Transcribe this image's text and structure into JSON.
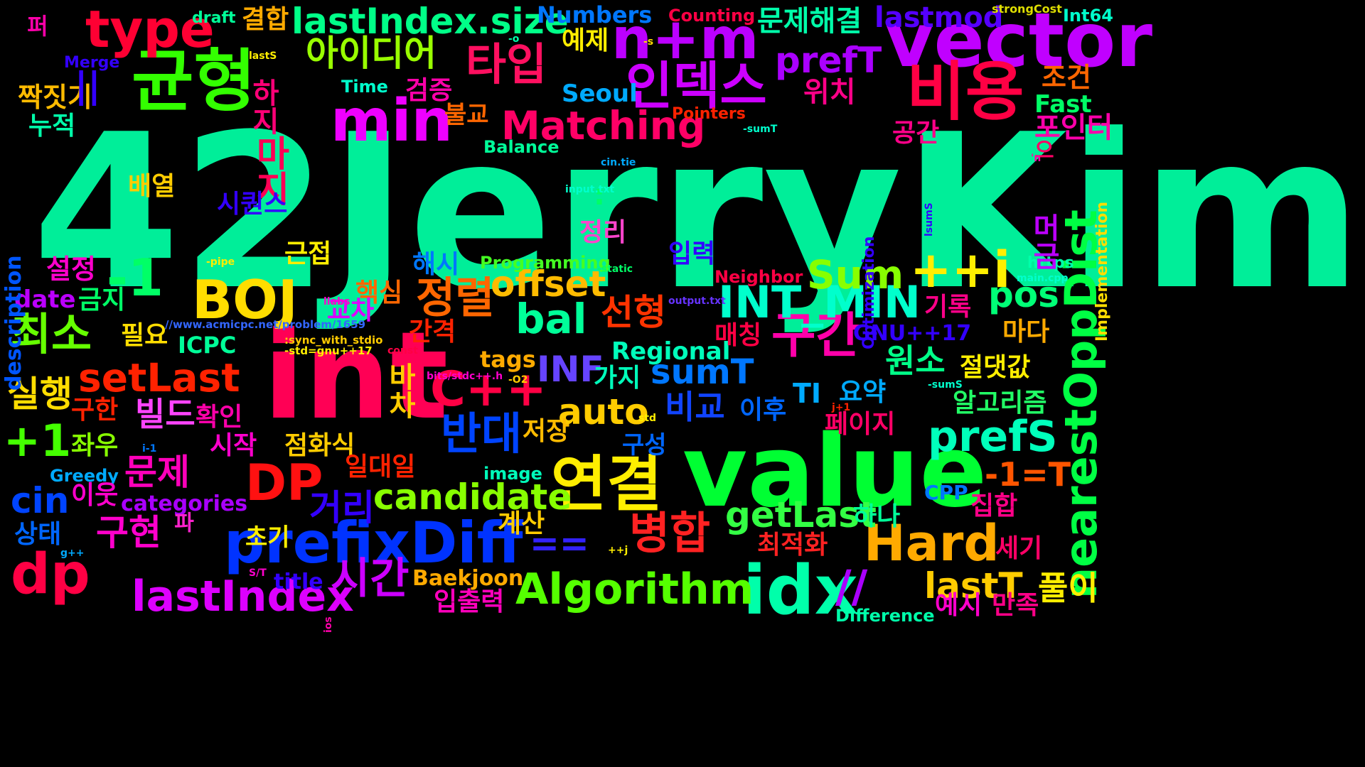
{
  "words": {
    "w0": {
      "text": "42JerryKim",
      "color": "#00ee99"
    },
    "w1": {
      "text": "int",
      "color": "#ff0055"
    },
    "w2": {
      "text": "value",
      "color": "#00ff33"
    },
    "w3": {
      "text": "vector",
      "color": "#c000ff"
    },
    "w4": {
      "text": "균형",
      "color": "#33ff00"
    },
    "w5": {
      "text": "n+m",
      "color": "#bb00ff"
    },
    "w6": {
      "text": "비용",
      "color": "#ff0044"
    },
    "w7": {
      "text": "min",
      "color": "#ee00ff"
    },
    "w8": {
      "text": "타입",
      "color": "#ff1060"
    },
    "w9": {
      "text": "인덱스",
      "color": "#cc00ff"
    },
    "w10": {
      "text": "type",
      "color": "#ff0033"
    },
    "w11": {
      "text": "lastIndex.size",
      "color": "#00ff88"
    },
    "w12": {
      "text": "아이디어",
      "color": "#99ff00"
    },
    "w13": {
      "text": "prefixDiff",
      "color": "#0033ff"
    },
    "w14": {
      "text": "연결",
      "color": "#ffee00"
    },
    "w15": {
      "text": "idx",
      "color": "#00ffaa"
    },
    "w16": {
      "text": "dp",
      "color": "#ff0044"
    },
    "w17": {
      "text": "DP",
      "color": "#ff1111"
    },
    "w18": {
      "text": "BOJ",
      "color": "#ffdd00"
    },
    "w19": {
      "text": "-1",
      "color": "#00ff66"
    },
    "w20": {
      "text": "최소",
      "color": "#66ff00"
    },
    "w21": {
      "text": "구간",
      "color": "#ff00aa"
    },
    "w22": {
      "text": "INT_MIN",
      "color": "#00ffcc"
    },
    "w23": {
      "text": "++i",
      "color": "#ffee00"
    },
    "w24": {
      "text": "Hard",
      "color": "#ffaa00"
    },
    "w25": {
      "text": "병합",
      "color": "#ff2222"
    },
    "w26": {
      "text": "Algorithm",
      "color": "#55ff00"
    },
    "w27": {
      "text": "lastIndex",
      "color": "#dd00ff"
    },
    "w28": {
      "text": "시간",
      "color": "#cc00ff"
    },
    "w29": {
      "text": "==",
      "color": "#3322ff"
    },
    "w30": {
      "text": "C++",
      "color": "#ff0044"
    },
    "w31": {
      "text": "반대",
      "color": "#0044ff"
    },
    "w32": {
      "text": "Matching",
      "color": "#ff0066"
    },
    "w33": {
      "text": "정렬",
      "color": "#ff6600"
    },
    "w34": {
      "text": "offset",
      "color": "#ffbb00"
    },
    "w35": {
      "text": "bal",
      "color": "#00ff99"
    },
    "w36": {
      "text": "setLast",
      "color": "#ff2200"
    },
    "w37": {
      "text": "+1",
      "color": "#44ff00"
    },
    "w38": {
      "text": "candidate",
      "color": "#88ff00"
    },
    "w39": {
      "text": "getLast",
      "color": "#33ff44"
    },
    "w40": {
      "text": "prefS",
      "color": "#00ffbb"
    },
    "w41": {
      "text": "prefT",
      "color": "#aa00ff"
    },
    "w42": {
      "text": "nearestOppDist",
      "color": "#00ff44"
    },
    "w43": {
      "text": "Sum",
      "color": "#88ff00"
    },
    "w44": {
      "text": "pos",
      "color": "#00ff77"
    },
    "w45": {
      "text": "auto",
      "color": "#ffcc00"
    },
    "w46": {
      "text": "sumT",
      "color": "#0077ff"
    },
    "w47": {
      "text": "lastT",
      "color": "#ffcc00"
    },
    "w48": {
      "text": "-1=T",
      "color": "#ff5500"
    },
    "w49": {
      "text": "선형",
      "color": "#ff3300"
    },
    "w50": {
      "text": "INF",
      "color": "#6644ff"
    },
    "w51": {
      "text": "문제",
      "color": "#ff00bb"
    },
    "w52": {
      "text": "구현",
      "color": "#ff00cc"
    },
    "w53": {
      "text": "실행",
      "color": "#ffdd00"
    },
    "w54": {
      "text": "cin",
      "color": "#0044ff"
    },
    "w55": {
      "text": "거리",
      "color": "#3300ff"
    },
    "w56": {
      "text": "하지",
      "color": "#ff0077"
    },
    "w57": {
      "text": "마지",
      "color": "#ff0055"
    },
    "w58": {
      "text": "원소",
      "color": "#00ff88"
    },
    "w59": {
      "text": "비교",
      "color": "#1144ff"
    },
    "w60": {
      "text": "위치",
      "color": "#ff0088"
    },
    "w61": {
      "text": "lastmod",
      "color": "#5500ff"
    },
    "w62": {
      "text": "문제해결",
      "color": "#00ffaa"
    },
    "w63": {
      "text": "결합",
      "color": "#ffaa00"
    },
    "w64": {
      "text": "Numbers",
      "color": "#0077ff"
    },
    "w65": {
      "text": "Counting",
      "color": "#ff0044"
    },
    "w66": {
      "text": "draft",
      "color": "#00ff99"
    },
    "w67": {
      "text": "strongCost",
      "color": "#dddd00"
    },
    "w68": {
      "text": "Int64",
      "color": "#00ffcc"
    },
    "w69": {
      "text": "Seoul",
      "color": "#00aaff"
    },
    "w70": {
      "text": "Fast",
      "color": "#00ff66"
    },
    "w71": {
      "text": "조건",
      "color": "#ff6600"
    },
    "w72": {
      "text": "포인터",
      "color": "#ff00aa"
    },
    "w73": {
      "text": "공간",
      "color": "#ff0088"
    },
    "w74": {
      "text": "예제",
      "color": "#ffee00"
    },
    "w75": {
      "text": "검증",
      "color": "#ff00aa"
    },
    "w76": {
      "text": "불교",
      "color": "#ff6600"
    },
    "w77": {
      "text": "Time",
      "color": "#00ffcc"
    },
    "w78": {
      "text": "Pointers",
      "color": "#ff2200"
    },
    "w79": {
      "text": "Balance",
      "color": "#00ff99"
    },
    "w80": {
      "text": "Merge",
      "color": "#3300ff"
    },
    "w81": {
      "text": "짝짓기",
      "color": "#ffbb00"
    },
    "w82": {
      "text": "누적",
      "color": "#00ffaa"
    },
    "w83": {
      "text": "배열",
      "color": "#ffcc00"
    },
    "w84": {
      "text": "시퀀스",
      "color": "#3300ff"
    },
    "w85": {
      "text": "정리",
      "color": "#ff44cc"
    },
    "w86": {
      "text": "설정",
      "color": "#ff00cc"
    },
    "w87": {
      "text": "근접",
      "color": "#ffee00"
    },
    "w88": {
      "text": "해시",
      "color": "#0077ff"
    },
    "w89": {
      "text": "입력",
      "color": "#3300ff"
    },
    "w90": {
      "text": "Programming",
      "color": "#44ff22"
    },
    "w91": {
      "text": "Neighbor",
      "color": "#ff0044"
    },
    "w92": {
      "text": "https",
      "color": "#00ffaa"
    },
    "w93": {
      "text": "date",
      "color": "#bb00ff"
    },
    "w94": {
      "text": "금지",
      "color": "#00ff66"
    },
    "w95": {
      "text": "핵심",
      "color": "#ff6600"
    },
    "w96": {
      "text": "필요",
      "color": "#ffdd00"
    },
    "w97": {
      "text": "ICPC",
      "color": "#00ff99"
    },
    "w98": {
      "text": "교차",
      "color": "#dd00ff"
    },
    "w99": {
      "text": "간격",
      "color": "#ff2200"
    },
    "w100": {
      "text": "Regional",
      "color": "#00ffbb"
    },
    "w101": {
      "text": "매칭",
      "color": "#ff0044"
    },
    "w102": {
      "text": "기록",
      "color": "#ff0088"
    },
    "w103": {
      "text": "마다",
      "color": "#ffaa00"
    },
    "w104": {
      "text": "GNU++17",
      "color": "#3300ff"
    },
    "w105": {
      "text": "tags",
      "color": "#ffaa00"
    },
    "w106": {
      "text": "가지",
      "color": "#00ffbb"
    },
    "w107": {
      "text": "절댓값",
      "color": "#ffee00"
    },
    "w108": {
      "text": "알고리즘",
      "color": "#22ff66"
    },
    "w109": {
      "text": "요약",
      "color": "#00aaff"
    },
    "w110": {
      "text": "이후",
      "color": "#0066ff"
    },
    "w111": {
      "text": "구한",
      "color": "#ff2200"
    },
    "w112": {
      "text": "빌드",
      "color": "#ff44ff"
    },
    "w113": {
      "text": "확인",
      "color": "#ff00aa"
    },
    "w114": {
      "text": "좌우",
      "color": "#88ff00"
    },
    "w115": {
      "text": "시작",
      "color": "#ff00cc"
    },
    "w116": {
      "text": "점화식",
      "color": "#ffcc00"
    },
    "w117": {
      "text": "저장",
      "color": "#ffbb00"
    },
    "w118": {
      "text": "구성",
      "color": "#0066ff"
    },
    "w119": {
      "text": "페이지",
      "color": "#ff0066"
    },
    "w120": {
      "text": "Greedy",
      "color": "#00aaff"
    },
    "w121": {
      "text": "image",
      "color": "#00ffbb"
    },
    "w122": {
      "text": "일대일",
      "color": "#ff2200"
    },
    "w123": {
      "text": "CPP",
      "color": "#0077ff"
    },
    "w124": {
      "text": "집합",
      "color": "#ff0088"
    },
    "w125": {
      "text": "이웃",
      "color": "#ff00cc"
    },
    "w126": {
      "text": "categories",
      "color": "#aa00ff"
    },
    "w127": {
      "text": "초기",
      "color": "#ffee00"
    },
    "w128": {
      "text": "계산",
      "color": "#ffcc00"
    },
    "w129": {
      "text": "하나",
      "color": "#00ff99"
    },
    "w130": {
      "text": "상태",
      "color": "#0066ff"
    },
    "w131": {
      "text": "최적화",
      "color": "#ff2222"
    },
    "w132": {
      "text": "세기",
      "color": "#ff0066"
    },
    "w133": {
      "text": "Baekjoon",
      "color": "#ffaa00"
    },
    "w134": {
      "text": "title",
      "color": "#3300ff"
    },
    "w135": {
      "text": "입출력",
      "color": "#ff00bb"
    },
    "w136": {
      "text": "//",
      "color": "#aa00ff"
    },
    "w137": {
      "text": "풀이",
      "color": "#ffee00"
    },
    "w138": {
      "text": "예시",
      "color": "#ff00cc"
    },
    "w139": {
      "text": "만족",
      "color": "#ff0088"
    },
    "w140": {
      "text": "Difference",
      "color": "#00ffaa"
    },
    "w141": {
      "text": "Implementation",
      "color": "#ffdd00"
    },
    "w142": {
      "text": "description",
      "color": "#0055ff"
    },
    "w143": {
      "text": "Optimization",
      "color": "#3300ff"
    },
    "w144": {
      "text": "머금",
      "color": "#bb00ff"
    },
    "w145": {
      "text": "바차",
      "color": "#ffcc00"
    },
    "w146": {
      "text": "파",
      "color": "#ff22cc"
    },
    "w147": {
      "text": "퍼",
      "color": "#ff00aa"
    },
    "w148": {
      "text": "||",
      "color": "#3300ff"
    },
    "w149": {
      "text": "TI",
      "color": "#00aaff"
    },
    "w150": {
      "text": "으",
      "color": "#ff0066"
    },
    "w151": {
      "text": ":",
      "color": "#00ff66"
    },
    "w152": {
      "text": "-o",
      "color": "#00ffaa"
    },
    "w153": {
      "text": "-s",
      "color": "#ffdd00"
    },
    "w154": {
      "text": "lastS",
      "color": "#ffee00"
    },
    "w155": {
      "text": "-sumT",
      "color": "#00ffcc"
    },
    "w156": {
      "text": "cin.tie",
      "color": "#00aaff"
    },
    "w157": {
      "text": "'n",
      "color": "#ff00aa"
    },
    "w158": {
      "text": "input.txt",
      "color": "#00ffcc"
    },
    "w159": {
      "text": "lsumS",
      "color": "#3300ff"
    },
    "w160": {
      "text": "-pipe",
      "color": "#ffee00"
    },
    "w161": {
      "text": "-static",
      "color": "#00ff66"
    },
    "w162": {
      "text": "main.cpp",
      "color": "#00ffcc"
    },
    "w163": {
      "text": "output.txt",
      "color": "#6633ff"
    },
    "w164": {
      "text": "//www.acmicpc.net/problem/1659",
      "color": "#3366ff"
    },
    "w165": {
      "text": ":sync_with_stdio",
      "color": "#ffcc00"
    },
    "w166": {
      "text": "-std=gnu++17",
      "color": "#ffee00"
    },
    "w167": {
      "text": "llabs",
      "color": "#ff00cc"
    },
    "w168": {
      "text": "const",
      "color": "#ff0044"
    },
    "w169": {
      "text": "bits/stdc++.h",
      "color": "#ff00cc"
    },
    "w170": {
      "text": "-O2",
      "color": "#ffcc00"
    },
    "w171": {
      "text": "-sumS",
      "color": "#00ffcc"
    },
    "w172": {
      "text": "j+1",
      "color": "#ff2200"
    },
    "w173": {
      "text": "std",
      "color": "#ffee00"
    },
    "w174": {
      "text": "i-1",
      "color": "#0077ff"
    },
    "w175": {
      "text": "g++",
      "color": "#00aaff"
    },
    "w176": {
      "text": "++j",
      "color": "#ffee00"
    },
    "w177": {
      "text": "S/T",
      "color": "#ff00cc"
    },
    "w178": {
      "text": "ios",
      "color": "#ff00aa"
    }
  }
}
